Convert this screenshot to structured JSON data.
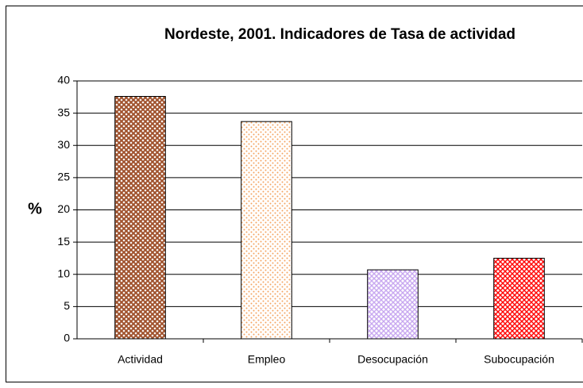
{
  "chart_data": {
    "type": "bar",
    "title": "Nordeste, 2001. Indicadores de Tasa de actividad",
    "y_label": "%",
    "categories": [
      "Actividad",
      "Empleo",
      "Desocupación",
      "Subocupación"
    ],
    "values": [
      37.6,
      33.7,
      10.7,
      12.5
    ],
    "colors": [
      "#a0522d",
      "#f4a460",
      "#c8a8f0",
      "#ff0000"
    ],
    "ylim": [
      0,
      40
    ],
    "yticks": [
      0,
      5,
      10,
      15,
      20,
      25,
      30,
      35,
      40
    ],
    "grid": true
  }
}
